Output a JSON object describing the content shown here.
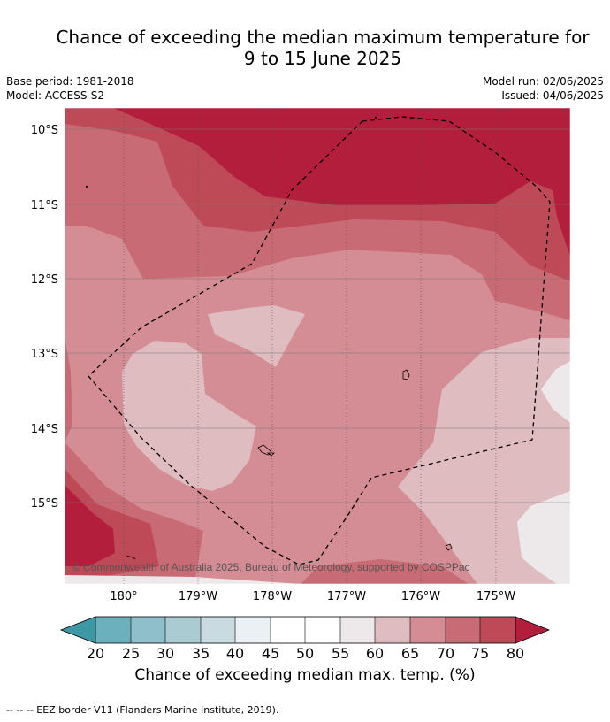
{
  "title_line1": "Chance of exceeding the median maximum temperature for",
  "title_line2": "9 to 15 June 2025",
  "base_period": "Base period: 1981-2018",
  "model": "Model: ACCESS-S2",
  "model_run": "Model run: 02/06/2025",
  "issued": "Issued: 04/06/2025",
  "lat_labels": [
    "10°S",
    "11°S",
    "12°S",
    "13°S",
    "14°S",
    "15°S"
  ],
  "lon_labels": [
    "180°",
    "179°W",
    "178°W",
    "177°W",
    "176°W",
    "175°W"
  ],
  "copyright": "© Commonwealth of Australia 2025, Bureau of Meteorology, supported by COSPPac",
  "colorbar_ticks": [
    "20",
    "25",
    "30",
    "35",
    "40",
    "45",
    "50",
    "55",
    "60",
    "65",
    "70",
    "75",
    "80"
  ],
  "colorbar_label": "Chance of exceeding median max. temp. (%)",
  "footnote": "--  --  -- EEZ border V11 (Flanders Marine Institute, 2019).",
  "colors": {
    "c20": "#4fa3b0",
    "c25": "#6cb0bd",
    "c30": "#8ebfca",
    "c35": "#a9cbd1",
    "c40": "#c9dbe0",
    "c45": "#eaf0f3",
    "c50": "#ffffff",
    "c55": "#ffffff",
    "c60": "#ede9ea",
    "c65": "#dfbcc0",
    "c70": "#d48d94",
    "c75": "#c96b74",
    "c80": "#be4a58",
    "c85": "#b21e3b"
  }
}
